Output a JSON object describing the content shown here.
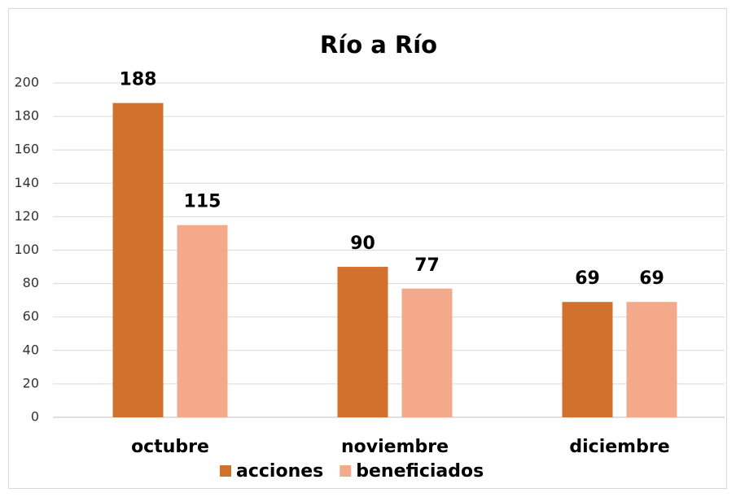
{
  "chart_data": {
    "type": "bar",
    "title": "Río a Río",
    "categories": [
      "octubre",
      "noviembre",
      "diciembre"
    ],
    "series": [
      {
        "name": "acciones",
        "color": "#d2702d",
        "values": [
          188,
          90,
          69
        ]
      },
      {
        "name": "beneficiados",
        "color": "#f4a98b",
        "values": [
          115,
          77,
          69
        ]
      }
    ],
    "ylim": [
      0,
      200
    ],
    "yticks": [
      0,
      20,
      40,
      60,
      80,
      100,
      120,
      140,
      160,
      180,
      200
    ],
    "grid": true,
    "legend": "bottom"
  }
}
